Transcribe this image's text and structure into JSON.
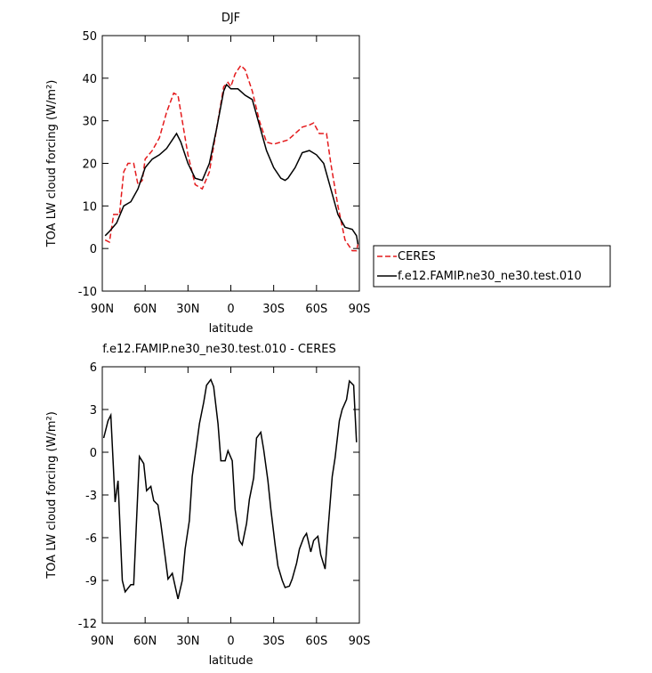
{
  "chart_data": [
    {
      "type": "line",
      "title": "DJF",
      "xlabel": "latitude",
      "ylabel": "TOA LW cloud forcing (W/m²)",
      "xlim": [
        90,
        -90
      ],
      "xticks": [
        {
          "value": 90,
          "label": "90N"
        },
        {
          "value": 60,
          "label": "60N"
        },
        {
          "value": 30,
          "label": "30N"
        },
        0,
        {
          "value": -30,
          "label": "30S"
        },
        {
          "value": -60,
          "label": "60S"
        },
        {
          "value": -90,
          "label": "90S"
        }
      ],
      "ylim": [
        -10,
        50
      ],
      "yticks": [
        -10,
        0,
        10,
        20,
        30,
        40,
        50
      ],
      "legend": "outside-right",
      "series": [
        {
          "name": "CERES",
          "color": "#e41a1c",
          "line_style": "dashed",
          "x": [
            88,
            85,
            82,
            78,
            75,
            72,
            68,
            65,
            62,
            60,
            55,
            50,
            45,
            40,
            37,
            33,
            30,
            25,
            20,
            15,
            10,
            5,
            2,
            0,
            -3,
            -7,
            -10,
            -15,
            -20,
            -25,
            -30,
            -35,
            -40,
            -45,
            -50,
            -55,
            -58,
            -62,
            -67,
            -70,
            -75,
            -80,
            -85,
            -88,
            -89
          ],
          "values": [
            2,
            1.5,
            8,
            8,
            18,
            20,
            20,
            15,
            16,
            21,
            23,
            26,
            32,
            36.5,
            36,
            28,
            22,
            15,
            14,
            18,
            28,
            38,
            39,
            38,
            41,
            43,
            42,
            37,
            30,
            25,
            24.5,
            25,
            25.5,
            27,
            28.5,
            29,
            29.5,
            27,
            27,
            20,
            10,
            2,
            -0.5,
            -0.5,
            1
          ]
        },
        {
          "name": "f.e12.FAMIP.ne30_ne30.test.010",
          "color": "#000000",
          "line_style": "solid",
          "x": [
            88,
            85,
            80,
            75,
            70,
            65,
            60,
            55,
            50,
            45,
            40,
            38,
            35,
            30,
            25,
            20,
            15,
            10,
            5,
            3,
            0,
            -5,
            -10,
            -15,
            -20,
            -25,
            -30,
            -35,
            -38,
            -40,
            -45,
            -50,
            -55,
            -60,
            -65,
            -70,
            -75,
            -80,
            -85,
            -88,
            -89
          ],
          "values": [
            3,
            4,
            6,
            10,
            11,
            14,
            19,
            21,
            22,
            23.5,
            26,
            27,
            25,
            20,
            16.5,
            16,
            20,
            28,
            37,
            38.5,
            37.5,
            37.5,
            36,
            35,
            29,
            23,
            19,
            16.5,
            16,
            16.5,
            19,
            22.5,
            23,
            22,
            20,
            14,
            8,
            5,
            4.5,
            3,
            1
          ]
        }
      ]
    },
    {
      "type": "line",
      "title": "f.e12.FAMIP.ne30_ne30.test.010 - CERES",
      "xlabel": "latitude",
      "ylabel": "TOA LW cloud forcing (W/m²)",
      "xlim": [
        90,
        -90
      ],
      "xticks": [
        {
          "value": 90,
          "label": "90N"
        },
        {
          "value": 60,
          "label": "60N"
        },
        {
          "value": 30,
          "label": "30N"
        },
        0,
        {
          "value": -30,
          "label": "30S"
        },
        {
          "value": -60,
          "label": "60S"
        },
        {
          "value": -90,
          "label": "90S"
        }
      ],
      "ylim": [
        -12,
        6
      ],
      "yticks": [
        -12,
        -9,
        -6,
        -3,
        0,
        3,
        6
      ],
      "color": "#000000",
      "x": [
        89,
        86,
        84,
        81,
        79,
        76,
        74,
        70,
        68,
        64,
        61,
        59,
        56,
        54,
        51,
        49,
        46,
        44,
        41,
        39,
        37,
        34,
        32,
        29,
        27,
        24,
        22,
        19,
        17,
        14,
        12,
        9,
        7,
        4,
        2,
        -1,
        -3,
        -6,
        -8,
        -11,
        -13,
        -16,
        -18,
        -21,
        -23,
        -26,
        -28,
        -31,
        -33,
        -36,
        -38,
        -41,
        -43,
        -46,
        -48,
        -51,
        -53,
        -56,
        -58,
        -61,
        -63,
        -66,
        -68,
        -71,
        -73,
        -76,
        -78,
        -81,
        -83,
        -86,
        -88
      ],
      "values": [
        1,
        2.2,
        2.6,
        -3.5,
        -2,
        -9,
        -9.8,
        -9.3,
        -9.3,
        -0.3,
        -0.8,
        -2.7,
        -2.4,
        -3.4,
        -3.7,
        -5,
        -7.3,
        -8.9,
        -8.5,
        -9.4,
        -10.3,
        -9,
        -6.8,
        -4.8,
        -1.7,
        0.5,
        2,
        3.5,
        4.7,
        5.1,
        4.6,
        2,
        -0.6,
        -0.6,
        0.1,
        -0.6,
        -4,
        -6.2,
        -6.5,
        -5,
        -3.3,
        -1.8,
        1,
        1.4,
        0.2,
        -2,
        -4,
        -6.5,
        -8,
        -9,
        -9.5,
        -9.4,
        -8.9,
        -7.8,
        -6.8,
        -6,
        -5.7,
        -7,
        -6.2,
        -5.9,
        -7.2,
        -8.2,
        -5.5,
        -1.7,
        -0.4,
        2.2,
        3,
        3.7,
        5,
        4.7,
        0.7
      ]
    }
  ]
}
